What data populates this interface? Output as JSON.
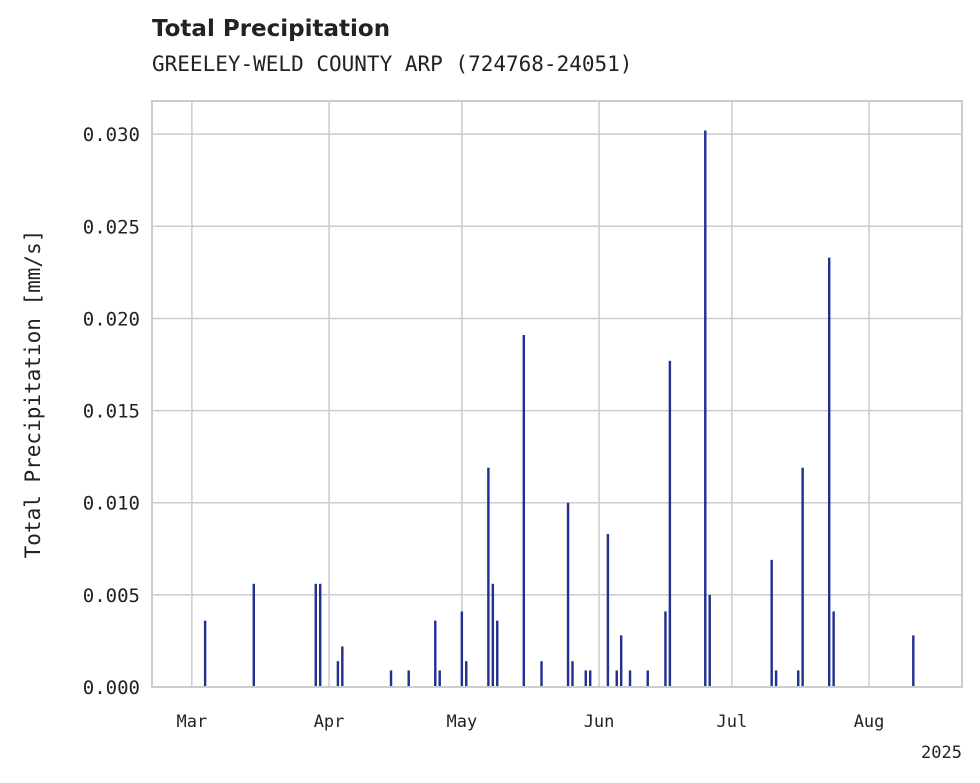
{
  "chart_data": {
    "type": "bar",
    "title": "Total Precipitation",
    "subtitle": "GREELEY-WELD COUNTY ARP (724768-24051)",
    "xlabel": "",
    "ylabel": "Total Precipitation [mm/s]",
    "x_range": [
      "2025-02-20",
      "2025-08-22"
    ],
    "ylim": [
      0,
      0.0318
    ],
    "yticks": [
      0.0,
      0.005,
      0.01,
      0.015,
      0.02,
      0.025,
      0.03
    ],
    "ytick_labels": [
      "0.000",
      "0.005",
      "0.010",
      "0.015",
      "0.020",
      "0.025",
      "0.030"
    ],
    "xticks": [
      "2025-03-01",
      "2025-04-01",
      "2025-05-01",
      "2025-06-01",
      "2025-07-01",
      "2025-08-01"
    ],
    "xtick_labels": [
      "Mar",
      "Apr",
      "May",
      "Jun",
      "Jul",
      "Aug"
    ],
    "x_offset_label": "2025",
    "grid": true,
    "bar_color": "#22308f",
    "series": [
      {
        "points": [
          {
            "x": "2025-03-04",
            "y": 0.0036
          },
          {
            "x": "2025-03-15",
            "y": 0.0056
          },
          {
            "x": "2025-03-29",
            "y": 0.0056
          },
          {
            "x": "2025-03-30",
            "y": 0.0056
          },
          {
            "x": "2025-04-03",
            "y": 0.0014
          },
          {
            "x": "2025-04-04",
            "y": 0.0022
          },
          {
            "x": "2025-04-15",
            "y": 0.0009
          },
          {
            "x": "2025-04-19",
            "y": 0.0009
          },
          {
            "x": "2025-04-25",
            "y": 0.0036
          },
          {
            "x": "2025-04-26",
            "y": 0.0009
          },
          {
            "x": "2025-05-01",
            "y": 0.0041
          },
          {
            "x": "2025-05-02",
            "y": 0.0014
          },
          {
            "x": "2025-05-07",
            "y": 0.0119
          },
          {
            "x": "2025-05-08",
            "y": 0.0056
          },
          {
            "x": "2025-05-09",
            "y": 0.0036
          },
          {
            "x": "2025-05-15",
            "y": 0.0191
          },
          {
            "x": "2025-05-19",
            "y": 0.0014
          },
          {
            "x": "2025-05-25",
            "y": 0.01
          },
          {
            "x": "2025-05-26",
            "y": 0.0014
          },
          {
            "x": "2025-05-29",
            "y": 0.0009
          },
          {
            "x": "2025-05-30",
            "y": 0.0009
          },
          {
            "x": "2025-06-03",
            "y": 0.0083
          },
          {
            "x": "2025-06-05",
            "y": 0.0009
          },
          {
            "x": "2025-06-06",
            "y": 0.0028
          },
          {
            "x": "2025-06-08",
            "y": 0.0009
          },
          {
            "x": "2025-06-12",
            "y": 0.0009
          },
          {
            "x": "2025-06-16",
            "y": 0.0041
          },
          {
            "x": "2025-06-17",
            "y": 0.0177
          },
          {
            "x": "2025-06-25",
            "y": 0.0302
          },
          {
            "x": "2025-06-26",
            "y": 0.005
          },
          {
            "x": "2025-07-10",
            "y": 0.0069
          },
          {
            "x": "2025-07-11",
            "y": 0.0009
          },
          {
            "x": "2025-07-16",
            "y": 0.0009
          },
          {
            "x": "2025-07-17",
            "y": 0.0119
          },
          {
            "x": "2025-07-23",
            "y": 0.0233
          },
          {
            "x": "2025-07-24",
            "y": 0.0041
          },
          {
            "x": "2025-08-11",
            "y": 0.0028
          }
        ]
      }
    ]
  }
}
